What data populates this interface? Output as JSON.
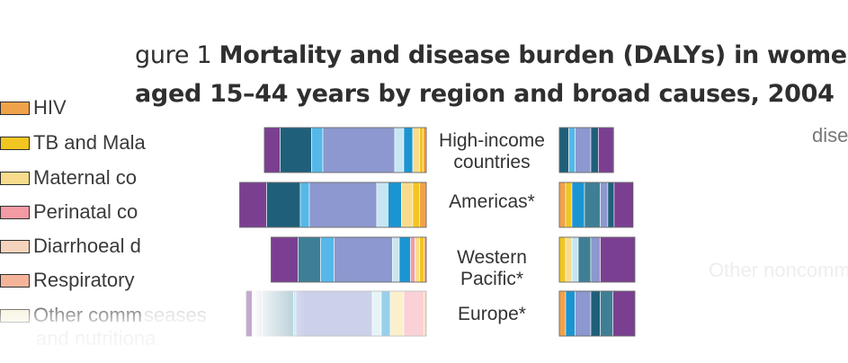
{
  "title": {
    "line1_prefix": "gure 1 ",
    "line1_bold": "Mortality and disease burden (DALYs) in women",
    "line2": "aged 15–44 years by region and broad causes, 2004"
  },
  "legend": [
    {
      "label": "HIV",
      "color": "#f0a24a"
    },
    {
      "label": "TB and Mala",
      "color": "#f2c521"
    },
    {
      "label": "Maternal co",
      "color": "#f8dc8c"
    },
    {
      "label": "Perinatal co",
      "color": "#f39aa3"
    },
    {
      "label": "Diarrhoeal d",
      "color": "#f6d3bc"
    },
    {
      "label": "Respiratory",
      "color": "#f5b49a"
    },
    {
      "label": "Other comm",
      "color": "#f3efcf",
      "extra": "seases",
      "line2": "and nutritiona"
    }
  ],
  "notes": {
    "right_top": "dise",
    "right_bottom": "Other noncomm"
  },
  "chart_data": {
    "type": "bar",
    "categories": [
      "High-income countries",
      "Americas*",
      "Western Pacific*",
      "Europe*"
    ],
    "segment_colors": {
      "hiv": "#f0a24a",
      "tb_malaria": "#f2c521",
      "maternal": "#f8dc8c",
      "perinatal": "#f39aa3",
      "diarrhoeal": "#f6d3bc",
      "respiratory": "#f5b49a",
      "other_comm": "#f3efcf",
      "purple": "#7b3f92",
      "dark_teal": "#1f5f7a",
      "light_blue": "#55b8e8",
      "periwinkle": "#8c98cf",
      "pale_blue": "#c6e6f2",
      "blue": "#1b95d2",
      "teal": "#3f7f95"
    },
    "left_bars": [
      {
        "category": "High-income countries",
        "segments": [
          {
            "key": "purple",
            "value": 3.5
          },
          {
            "key": "dark_teal",
            "value": 7
          },
          {
            "key": "light_blue",
            "value": 2.5
          },
          {
            "key": "periwinkle",
            "value": 16
          },
          {
            "key": "pale_blue",
            "value": 2
          },
          {
            "key": "blue",
            "value": 2
          },
          {
            "key": "maternal",
            "value": 1.5
          },
          {
            "key": "tb_malaria",
            "value": 0.8
          },
          {
            "key": "hiv",
            "value": 0.7
          }
        ]
      },
      {
        "category": "Americas*",
        "segments": [
          {
            "key": "purple",
            "value": 6
          },
          {
            "key": "dark_teal",
            "value": 7.5
          },
          {
            "key": "light_blue",
            "value": 2
          },
          {
            "key": "periwinkle",
            "value": 15
          },
          {
            "key": "pale_blue",
            "value": 2.5
          },
          {
            "key": "blue",
            "value": 3
          },
          {
            "key": "maternal",
            "value": 2.5
          },
          {
            "key": "tb_malaria",
            "value": 1.5
          },
          {
            "key": "hiv",
            "value": 1.5
          }
        ]
      },
      {
        "category": "Western Pacific*",
        "segments": [
          {
            "key": "purple",
            "value": 6
          },
          {
            "key": "teal",
            "value": 5
          },
          {
            "key": "light_blue",
            "value": 3
          },
          {
            "key": "periwinkle",
            "value": 13
          },
          {
            "key": "pale_blue",
            "value": 1.5
          },
          {
            "key": "blue",
            "value": 2.5
          },
          {
            "key": "perinatal",
            "value": 1
          },
          {
            "key": "maternal",
            "value": 1
          },
          {
            "key": "tb_malaria",
            "value": 1
          },
          {
            "key": "hiv",
            "value": 0.5
          }
        ]
      },
      {
        "category": "Europe*",
        "segments": [
          {
            "key": "purple",
            "value": 3.5
          },
          {
            "key": "teal",
            "value": 7
          },
          {
            "key": "light_blue",
            "value": 0.5
          },
          {
            "key": "periwinkle",
            "value": 17
          },
          {
            "key": "pale_blue",
            "value": 2
          },
          {
            "key": "blue",
            "value": 2
          },
          {
            "key": "maternal",
            "value": 3
          },
          {
            "key": "perinatal",
            "value": 4.5
          },
          {
            "key": "hiv",
            "value": 0.5
          }
        ]
      }
    ],
    "right_bars": [
      {
        "category": "High-income countries",
        "segments": [
          {
            "key": "dark_teal",
            "value": 1.5
          },
          {
            "key": "light_blue",
            "value": 1
          },
          {
            "key": "periwinkle",
            "value": 2.5
          },
          {
            "key": "dark_teal",
            "value": 1.2
          },
          {
            "key": "purple",
            "value": 2.4
          }
        ]
      },
      {
        "category": "Americas*",
        "segments": [
          {
            "key": "hiv",
            "value": 1
          },
          {
            "key": "tb_malaria",
            "value": 1
          },
          {
            "key": "blue",
            "value": 2
          },
          {
            "key": "teal",
            "value": 2.5
          },
          {
            "key": "periwinkle",
            "value": 1.2
          },
          {
            "key": "dark_teal",
            "value": 1
          },
          {
            "key": "purple",
            "value": 3
          }
        ]
      },
      {
        "category": "Western Pacific*",
        "segments": [
          {
            "key": "tb_malaria",
            "value": 1
          },
          {
            "key": "maternal",
            "value": 1
          },
          {
            "key": "pale_blue",
            "value": 1
          },
          {
            "key": "teal",
            "value": 2
          },
          {
            "key": "periwinkle",
            "value": 1.5
          },
          {
            "key": "purple",
            "value": 5.5
          }
        ]
      },
      {
        "category": "Europe*",
        "segments": [
          {
            "key": "hiv",
            "value": 1
          },
          {
            "key": "blue",
            "value": 1.5
          },
          {
            "key": "periwinkle",
            "value": 2.5
          },
          {
            "key": "dark_teal",
            "value": 1.5
          },
          {
            "key": "teal",
            "value": 2
          },
          {
            "key": "purple",
            "value": 3.5
          }
        ]
      }
    ]
  }
}
